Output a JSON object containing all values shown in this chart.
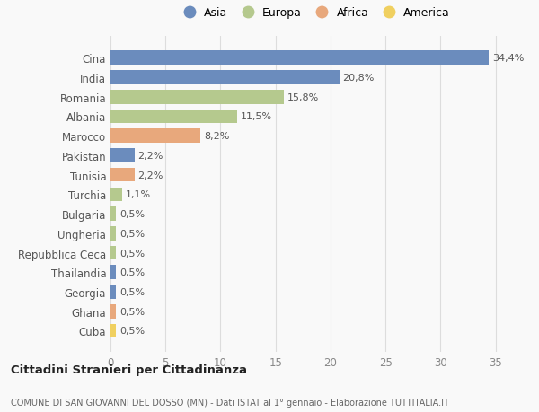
{
  "countries": [
    "Cina",
    "India",
    "Romania",
    "Albania",
    "Marocco",
    "Pakistan",
    "Tunisia",
    "Turchia",
    "Bulgaria",
    "Ungheria",
    "Repubblica Ceca",
    "Thailandia",
    "Georgia",
    "Ghana",
    "Cuba"
  ],
  "values": [
    34.4,
    20.8,
    15.8,
    11.5,
    8.2,
    2.2,
    2.2,
    1.1,
    0.5,
    0.5,
    0.5,
    0.5,
    0.5,
    0.5,
    0.5
  ],
  "labels": [
    "34,4%",
    "20,8%",
    "15,8%",
    "11,5%",
    "8,2%",
    "2,2%",
    "2,2%",
    "1,1%",
    "0,5%",
    "0,5%",
    "0,5%",
    "0,5%",
    "0,5%",
    "0,5%",
    "0,5%"
  ],
  "continents": [
    "Asia",
    "Asia",
    "Europa",
    "Europa",
    "Africa",
    "Asia",
    "Africa",
    "Europa",
    "Europa",
    "Europa",
    "Europa",
    "Asia",
    "Asia",
    "Africa",
    "America"
  ],
  "colors": {
    "Asia": "#6b8cbd",
    "Europa": "#b5c98e",
    "Africa": "#e8a87c",
    "America": "#f0d060"
  },
  "legend_order": [
    "Asia",
    "Europa",
    "Africa",
    "America"
  ],
  "title": "Cittadini Stranieri per Cittadinanza",
  "subtitle": "COMUNE DI SAN GIOVANNI DEL DOSSO (MN) - Dati ISTAT al 1° gennaio - Elaborazione TUTTITALIA.IT",
  "xlim": [
    0,
    37
  ],
  "xticks": [
    0,
    5,
    10,
    15,
    20,
    25,
    30,
    35
  ],
  "background_color": "#f9f9f9",
  "grid_color": "#dddddd"
}
